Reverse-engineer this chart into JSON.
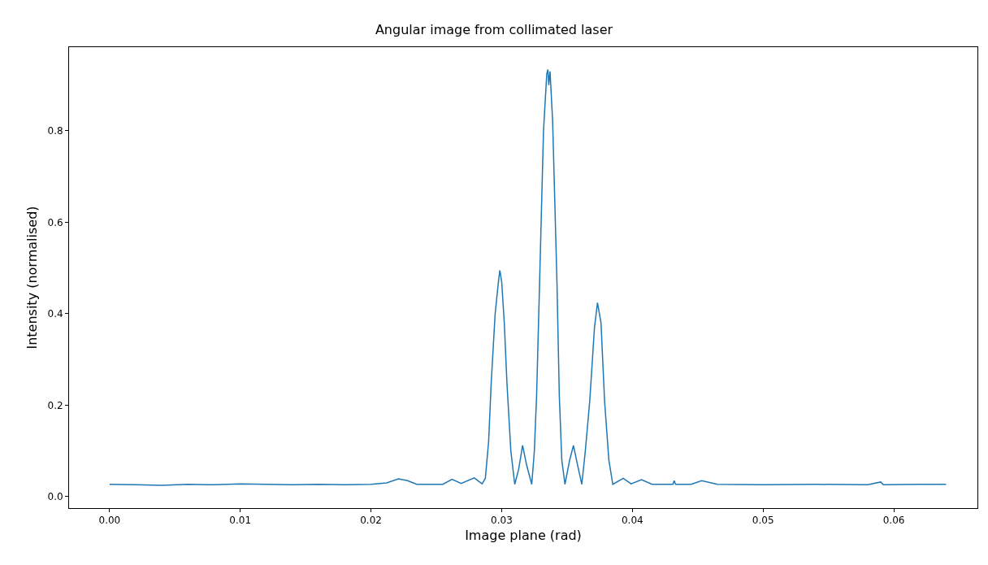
{
  "chart_data": {
    "type": "line",
    "title": "Angular image from collimated laser",
    "xlabel": "Image plane (rad)",
    "ylabel": "Intensity (normalised)",
    "x": [
      0,
      0.002,
      0.004,
      0.006,
      0.008,
      0.01,
      0.012,
      0.014,
      0.016,
      0.018,
      0.02,
      0.0212,
      0.0221,
      0.0228,
      0.0235,
      0.0255,
      0.0262,
      0.0269,
      0.0279,
      0.0285,
      0.02875,
      0.029,
      0.0292,
      0.0295,
      0.02975,
      0.02986,
      0.03,
      0.0302,
      0.0304,
      0.0307,
      0.031,
      0.0313,
      0.0316,
      0.0319,
      0.0323,
      0.0325,
      0.03267,
      0.0329,
      0.0332,
      0.03345,
      0.03354,
      0.0336,
      0.0337,
      0.0339,
      0.03423,
      0.03441,
      0.0346,
      0.03484,
      0.0352,
      0.03549,
      0.0358,
      0.03613,
      0.0364,
      0.03674,
      0.0371,
      0.03733,
      0.0376,
      0.03787,
      0.0382,
      0.0385,
      0.0393,
      0.0399,
      0.0407,
      0.0415,
      0.0431,
      0.0432,
      0.0433,
      0.0445,
      0.0453,
      0.0465,
      0.05,
      0.054,
      0.058,
      0.059,
      0.0592,
      0.062,
      0.064
    ],
    "series": [
      {
        "color": "#1f77b4",
        "values": [
          0.027,
          0.026,
          0.025,
          0.027,
          0.026,
          0.028,
          0.027,
          0.026,
          0.027,
          0.026,
          0.027,
          0.03,
          0.039,
          0.035,
          0.027,
          0.027,
          0.038,
          0.029,
          0.041,
          0.028,
          0.04,
          0.12,
          0.25,
          0.4,
          0.47,
          0.495,
          0.47,
          0.38,
          0.25,
          0.1,
          0.027,
          0.06,
          0.112,
          0.07,
          0.027,
          0.1,
          0.22,
          0.468,
          0.8,
          0.925,
          0.934,
          0.9,
          0.93,
          0.82,
          0.468,
          0.22,
          0.08,
          0.027,
          0.08,
          0.112,
          0.07,
          0.027,
          0.1,
          0.21,
          0.37,
          0.424,
          0.38,
          0.21,
          0.08,
          0.027,
          0.04,
          0.028,
          0.037,
          0.027,
          0.027,
          0.035,
          0.027,
          0.027,
          0.035,
          0.027,
          0.026,
          0.027,
          0.026,
          0.032,
          0.026,
          0.027,
          0.027
        ]
      }
    ],
    "xlim": [
      -0.0031,
      0.0664
    ],
    "ylim": [
      -0.025,
      0.983
    ],
    "xticks": [
      {
        "value": 0,
        "label": "0.00"
      },
      {
        "value": 0.01,
        "label": "0.01"
      },
      {
        "value": 0.02,
        "label": "0.02"
      },
      {
        "value": 0.03,
        "label": "0.03"
      },
      {
        "value": 0.04,
        "label": "0.04"
      },
      {
        "value": 0.05,
        "label": "0.05"
      },
      {
        "value": 0.06,
        "label": "0.06"
      }
    ],
    "yticks": [
      {
        "value": 0,
        "label": "0.0"
      },
      0.2,
      0.4,
      0.6,
      0.8
    ],
    "line_style": "solid",
    "marker": "none"
  }
}
